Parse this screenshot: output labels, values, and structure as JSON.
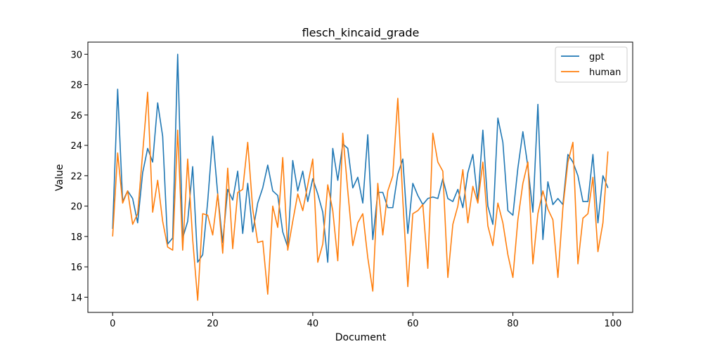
{
  "chart_data": {
    "type": "line",
    "title": "flesch_kincaid_grade",
    "xlabel": "Document",
    "ylabel": "Value",
    "xlim": [
      -4.95,
      103.95
    ],
    "ylim": [
      13.0,
      30.8
    ],
    "xticks": [
      0,
      20,
      40,
      60,
      80,
      100
    ],
    "yticks": [
      14,
      16,
      18,
      20,
      22,
      24,
      26,
      28,
      30
    ],
    "grid": false,
    "legend_position": "top-right",
    "series": [
      {
        "name": "gpt",
        "color": "#1f77b4",
        "x": [
          0,
          1,
          2,
          3,
          4,
          5,
          6,
          7,
          8,
          9,
          10,
          11,
          12,
          13,
          14,
          15,
          16,
          17,
          18,
          19,
          20,
          21,
          22,
          23,
          24,
          25,
          26,
          27,
          28,
          29,
          30,
          31,
          32,
          33,
          34,
          35,
          36,
          37,
          38,
          39,
          40,
          41,
          42,
          43,
          44,
          45,
          46,
          47,
          48,
          49,
          50,
          51,
          52,
          53,
          54,
          55,
          56,
          57,
          58,
          59,
          60,
          61,
          62,
          63,
          64,
          65,
          66,
          67,
          68,
          69,
          70,
          71,
          72,
          73,
          74,
          75,
          76,
          77,
          78,
          79,
          80,
          81,
          82,
          83,
          84,
          85,
          86,
          87,
          88,
          89,
          90,
          91,
          92,
          93,
          94,
          95,
          96,
          97,
          98,
          99
        ],
        "values": [
          18.5,
          27.7,
          20.3,
          21.0,
          20.5,
          18.9,
          22.2,
          23.8,
          22.9,
          26.8,
          24.6,
          17.5,
          17.9,
          30.0,
          17.9,
          19.0,
          22.6,
          16.3,
          16.8,
          20.3,
          24.6,
          20.8,
          17.6,
          21.1,
          20.4,
          22.3,
          18.2,
          21.5,
          18.3,
          20.2,
          21.2,
          22.7,
          21.0,
          20.7,
          18.3,
          17.3,
          23.0,
          21.0,
          22.3,
          20.3,
          21.8,
          20.8,
          19.6,
          16.3,
          23.8,
          21.7,
          24.1,
          23.8,
          21.2,
          21.9,
          20.2,
          24.7,
          17.8,
          20.9,
          20.9,
          19.9,
          19.9,
          22.1,
          23.1,
          18.2,
          21.5,
          20.7,
          20.1,
          20.5,
          20.6,
          20.5,
          21.8,
          20.5,
          20.3,
          21.1,
          19.9,
          22.2,
          23.4,
          20.3,
          25.0,
          20.0,
          18.8,
          25.8,
          24.2,
          19.7,
          19.4,
          22.5,
          24.9,
          22.6,
          19.6,
          26.7,
          17.8,
          21.6,
          20.1,
          20.5,
          20.1,
          23.4,
          22.9,
          22.0,
          20.3,
          20.3,
          23.4,
          18.9,
          22.0,
          21.2
        ]
      },
      {
        "name": "human",
        "color": "#ff7f0e",
        "x": [
          0,
          1,
          2,
          3,
          4,
          5,
          6,
          7,
          8,
          9,
          10,
          11,
          12,
          13,
          14,
          15,
          16,
          17,
          18,
          19,
          20,
          21,
          22,
          23,
          24,
          25,
          26,
          27,
          28,
          29,
          30,
          31,
          32,
          33,
          34,
          35,
          36,
          37,
          38,
          39,
          40,
          41,
          42,
          43,
          44,
          45,
          46,
          47,
          48,
          49,
          50,
          51,
          52,
          53,
          54,
          55,
          56,
          57,
          58,
          59,
          60,
          61,
          62,
          63,
          64,
          65,
          66,
          67,
          68,
          69,
          70,
          71,
          72,
          73,
          74,
          75,
          76,
          77,
          78,
          79,
          80,
          81,
          82,
          83,
          84,
          85,
          86,
          87,
          88,
          89,
          90,
          91,
          92,
          93,
          94,
          95,
          96,
          97,
          98,
          99
        ],
        "values": [
          18.0,
          23.5,
          20.2,
          21.0,
          18.8,
          19.5,
          23.5,
          27.5,
          19.6,
          21.7,
          19.0,
          17.3,
          17.1,
          25.0,
          17.1,
          23.1,
          17.8,
          13.8,
          19.5,
          19.4,
          18.1,
          20.8,
          16.9,
          22.5,
          17.2,
          20.9,
          21.1,
          24.2,
          19.8,
          17.6,
          17.7,
          14.2,
          20.0,
          18.6,
          23.2,
          17.1,
          19.0,
          20.8,
          19.7,
          21.4,
          23.1,
          16.3,
          17.5,
          21.4,
          19.7,
          16.4,
          24.8,
          21.0,
          17.4,
          18.9,
          19.5,
          16.6,
          14.4,
          21.5,
          18.1,
          21.0,
          22.0,
          27.1,
          20.4,
          14.7,
          19.5,
          19.7,
          20.1,
          15.9,
          24.8,
          22.9,
          22.3,
          15.3,
          18.8,
          20.0,
          22.4,
          18.9,
          21.3,
          20.2,
          22.9,
          18.7,
          17.4,
          20.2,
          18.9,
          16.8,
          15.3,
          19.1,
          21.5,
          22.9,
          16.2,
          19.5,
          21.0,
          19.8,
          19.1,
          15.3,
          19.9,
          22.9,
          24.2,
          16.2,
          19.2,
          19.5,
          21.9,
          17.0,
          18.9,
          23.6
        ]
      }
    ]
  }
}
